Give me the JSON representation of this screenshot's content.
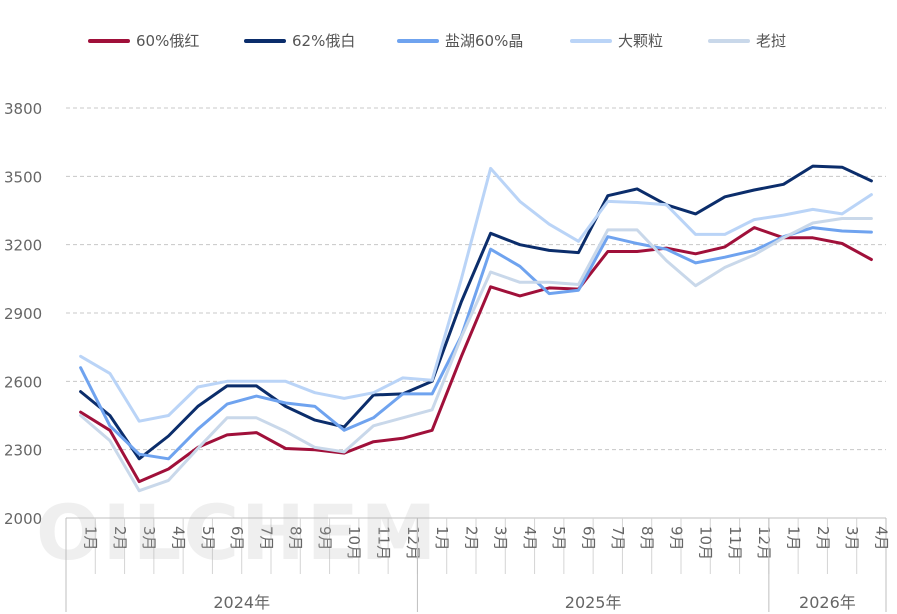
{
  "legend": [
    {
      "name": "60%俄红",
      "color": "#A0103A"
    },
    {
      "name": "62%俄白",
      "color": "#0B2D6B"
    },
    {
      "name": "盐湖60%晶",
      "color": "#6FA3EF"
    },
    {
      "name": "大颗粒",
      "color": "#BAD4F7"
    },
    {
      "name": "老挝",
      "color": "#C9D8EA"
    }
  ],
  "watermark": "OILCHEM",
  "chart_data": {
    "type": "line",
    "categories": [
      "1月",
      "2月",
      "3月",
      "4月",
      "5月",
      "6月",
      "7月",
      "8月",
      "9月",
      "10月",
      "11月",
      "12月",
      "1月",
      "2月",
      "3月",
      "4月",
      "5月",
      "6月",
      "7月",
      "8月",
      "9月",
      "10月",
      "11月",
      "12月",
      "1月",
      "2月",
      "3月",
      "4月"
    ],
    "year_groups": [
      {
        "label": "2024年",
        "count": 12
      },
      {
        "label": "2025年",
        "count": 12
      },
      {
        "label": "2026年",
        "count": 4
      }
    ],
    "ylim": [
      2000,
      3800
    ],
    "yticks": [
      "2000",
      "2300",
      "2600",
      "2900",
      "3200",
      "3500",
      "3800"
    ],
    "grid": true,
    "legend_position": "top",
    "series": [
      {
        "name": "60%俄红",
        "color": "#A0103A",
        "values": [
          2465,
          2385,
          2160,
          2215,
          2310,
          2365,
          2375,
          2305,
          2300,
          2285,
          2335,
          2350,
          2385,
          2710,
          3015,
          2975,
          3010,
          3005,
          3170,
          3170,
          3185,
          3160,
          3190,
          3275,
          3230,
          3230,
          3205,
          3135
        ]
      },
      {
        "name": "62%俄白",
        "color": "#0B2D6B",
        "values": [
          2555,
          2450,
          2260,
          2360,
          2490,
          2580,
          2580,
          2490,
          2430,
          2400,
          2540,
          2545,
          2600,
          2950,
          3250,
          3200,
          3175,
          3165,
          3415,
          3445,
          3375,
          3335,
          3410,
          3440,
          3465,
          3545,
          3540,
          3480
        ]
      },
      {
        "name": "盐湖60%晶",
        "color": "#6FA3EF",
        "values": [
          2660,
          2405,
          2280,
          2260,
          2390,
          2500,
          2535,
          2505,
          2490,
          2385,
          2440,
          2545,
          2545,
          2800,
          3180,
          3105,
          2985,
          3000,
          3235,
          3205,
          3180,
          3120,
          3145,
          3175,
          3235,
          3275,
          3260,
          3255
        ]
      },
      {
        "name": "大颗粒",
        "color": "#BAD4F7",
        "values": [
          2710,
          2635,
          2425,
          2450,
          2575,
          2600,
          2600,
          2600,
          2550,
          2525,
          2550,
          2615,
          2605,
          3050,
          3535,
          3390,
          3290,
          3215,
          3390,
          3385,
          3375,
          3245,
          3245,
          3310,
          3330,
          3355,
          3335,
          3420
        ]
      },
      {
        "name": "老挝",
        "color": "#C9D8EA",
        "values": [
          2450,
          2340,
          2120,
          2165,
          2305,
          2440,
          2440,
          2380,
          2310,
          2290,
          2405,
          2440,
          2475,
          2795,
          3080,
          3035,
          3035,
          3025,
          3265,
          3265,
          3130,
          3020,
          3100,
          3155,
          3230,
          3295,
          3315,
          3315
        ]
      }
    ]
  }
}
